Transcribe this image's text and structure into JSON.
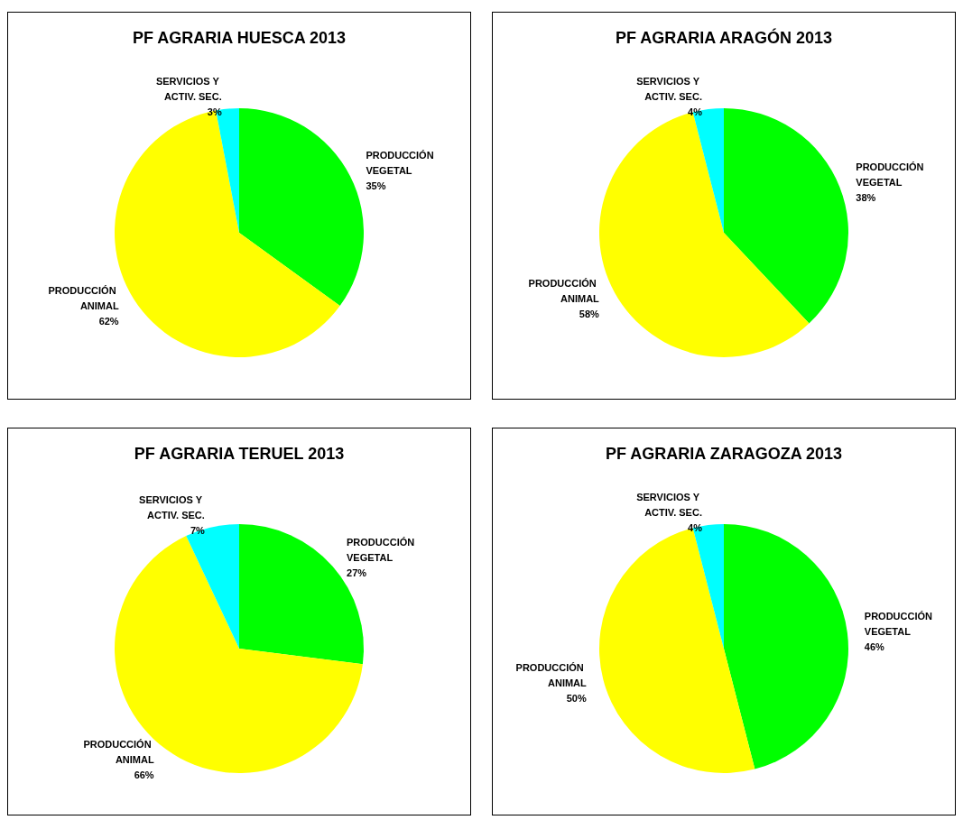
{
  "chart_data": [
    {
      "type": "pie",
      "title": "PF AGRARIA HUESCA 2013",
      "categories": [
        "PRODUCCIÓN VEGETAL",
        "PRODUCCIÓN ANIMAL",
        "SERVICIOS Y ACTIV. SEC."
      ],
      "values": [
        35,
        62,
        3
      ],
      "colors": [
        "#00ff00",
        "#ffff00",
        "#00ffff"
      ],
      "value_labels": [
        "35%",
        "62%",
        "3%"
      ]
    },
    {
      "type": "pie",
      "title": "PF AGRARIA ARAGÓN 2013",
      "categories": [
        "PRODUCCIÓN VEGETAL",
        "PRODUCCIÓN ANIMAL",
        "SERVICIOS Y ACTIV. SEC."
      ],
      "values": [
        38,
        58,
        4
      ],
      "colors": [
        "#00ff00",
        "#ffff00",
        "#00ffff"
      ],
      "value_labels": [
        "38%",
        "58%",
        "4%"
      ]
    },
    {
      "type": "pie",
      "title": "PF AGRARIA TERUEL 2013",
      "categories": [
        "PRODUCCIÓN VEGETAL",
        "PRODUCCIÓN ANIMAL",
        "SERVICIOS Y ACTIV. SEC."
      ],
      "values": [
        27,
        66,
        7
      ],
      "colors": [
        "#00ff00",
        "#ffff00",
        "#00ffff"
      ],
      "value_labels": [
        "27%",
        "66%",
        "7%"
      ]
    },
    {
      "type": "pie",
      "title": "PF AGRARIA ZARAGOZA 2013",
      "categories": [
        "PRODUCCIÓN VEGETAL",
        "PRODUCCIÓN ANIMAL",
        "SERVICIOS Y ACTIV. SEC."
      ],
      "values": [
        46,
        50,
        4
      ],
      "colors": [
        "#00ff00",
        "#ffff00",
        "#00ffff"
      ],
      "value_labels": [
        "46%",
        "50%",
        "4%"
      ]
    }
  ]
}
